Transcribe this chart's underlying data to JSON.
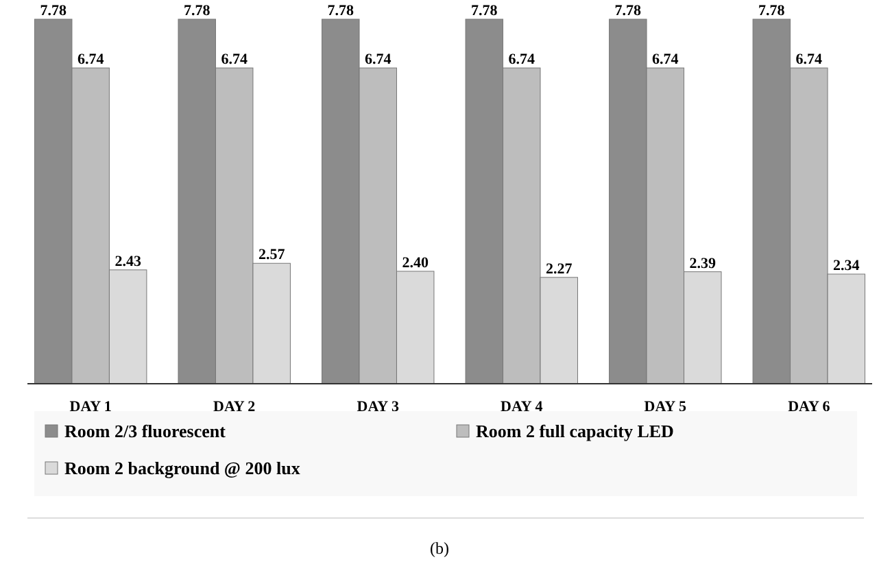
{
  "chart_data": {
    "type": "bar",
    "categories": [
      "DAY 1",
      "DAY 2",
      "DAY 3",
      "DAY 4",
      "DAY 5",
      "DAY 6"
    ],
    "series": [
      {
        "name": "Room 2/3 fluorescent",
        "color": "#8c8c8c",
        "values": [
          7.78,
          7.78,
          7.78,
          7.78,
          7.78,
          7.78
        ],
        "value_labels": [
          "7.78",
          "7.78",
          "7.78",
          "7.78",
          "7.78",
          "7.78"
        ]
      },
      {
        "name": "Room 2 full capacity LED",
        "color": "#bdbdbd",
        "values": [
          6.74,
          6.74,
          6.74,
          6.74,
          6.74,
          6.74
        ],
        "value_labels": [
          "6.74",
          "6.74",
          "6.74",
          "6.74",
          "6.74",
          "6.74"
        ]
      },
      {
        "name": "Room 2 background @ 200 lux",
        "color": "#dadada",
        "values": [
          2.43,
          2.57,
          2.4,
          2.27,
          2.39,
          2.34
        ],
        "value_labels": [
          "2.43",
          "2.57",
          "2.40",
          "2.27",
          "2.39",
          "2.34"
        ]
      }
    ],
    "tick_labels": "x",
    "legend": "bottom",
    "annotations": [
      "(b)"
    ]
  }
}
